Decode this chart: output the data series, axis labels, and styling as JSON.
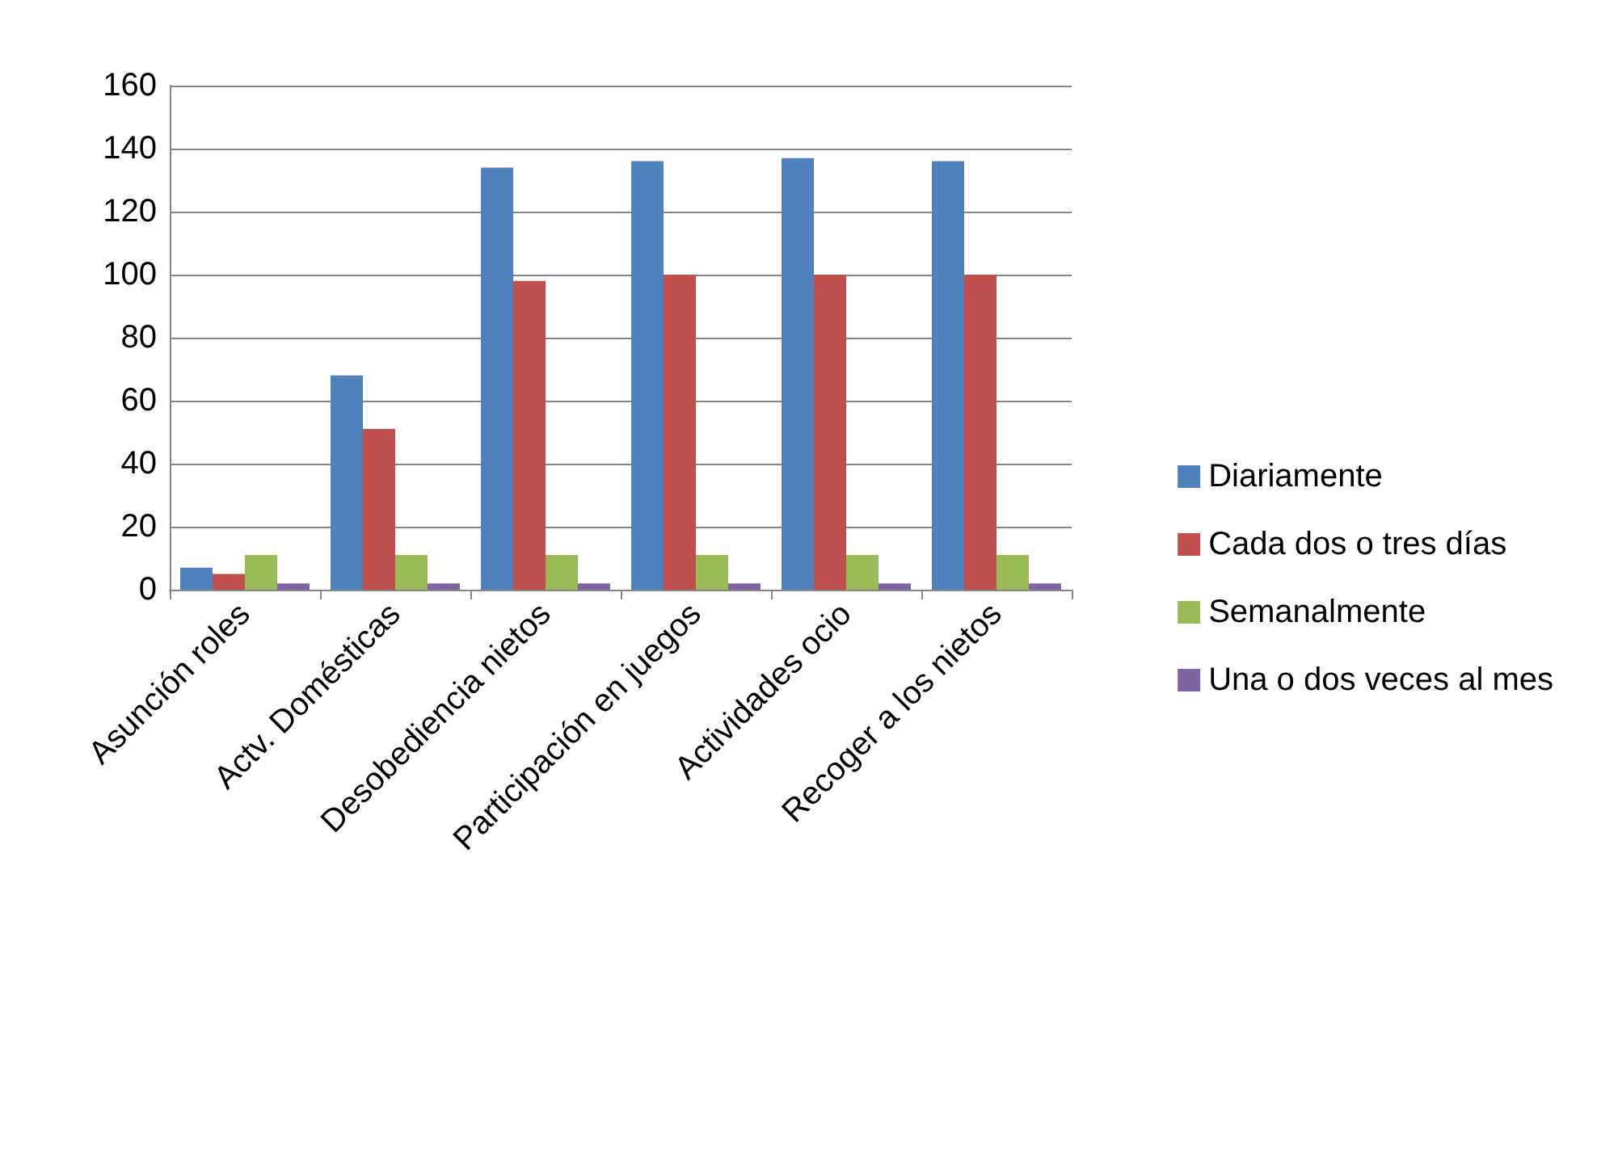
{
  "chart_data": {
    "type": "bar",
    "categories": [
      "Asunción roles",
      "Actv. Domésticas",
      "Desobediencia nietos",
      "Participación en juegos",
      "Actividades ocio",
      "Recoger a los nietos"
    ],
    "series": [
      {
        "name": "Diariamente",
        "color": "#4f81bd",
        "values": [
          7,
          68,
          134,
          136,
          137,
          136
        ]
      },
      {
        "name": "Cada dos o tres días",
        "color": "#c0504d",
        "values": [
          5,
          51,
          98,
          100,
          100,
          100
        ]
      },
      {
        "name": "Semanalmente",
        "color": "#9bbb59",
        "values": [
          11,
          11,
          11,
          11,
          11,
          11
        ]
      },
      {
        "name": "Una o dos veces al mes",
        "color": "#8064a2",
        "values": [
          2,
          2,
          2,
          2,
          2,
          2
        ]
      }
    ],
    "ylim": [
      0,
      160
    ],
    "yticks": [
      0,
      20,
      40,
      60,
      80,
      100,
      120,
      140,
      160
    ],
    "grid": "y",
    "legend": "right"
  }
}
